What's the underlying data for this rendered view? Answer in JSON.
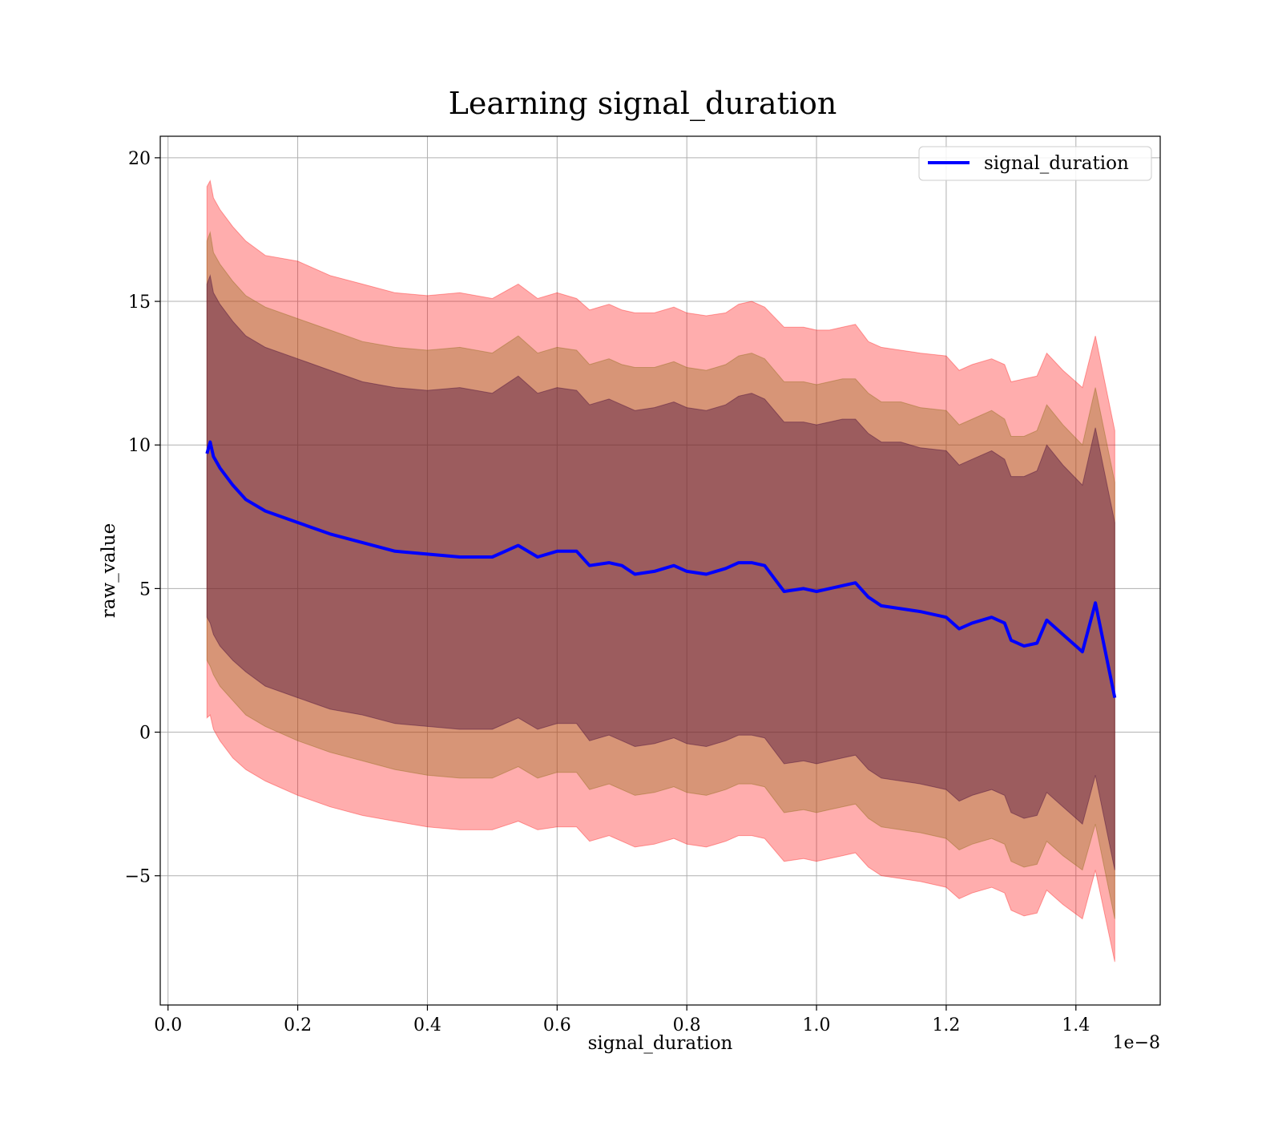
{
  "chart_data": {
    "type": "line",
    "title": "Learning signal_duration",
    "xlabel": "signal_duration",
    "ylabel": "raw_value",
    "x_offset_text": "1e−8",
    "xlim": [
      -0.012,
      1.53
    ],
    "ylim": [
      -9.5,
      20.75
    ],
    "x_ticks": [
      0.0,
      0.2,
      0.4,
      0.6,
      0.8,
      1.0,
      1.2,
      1.4
    ],
    "x_tick_labels": [
      "0.0",
      "0.2",
      "0.4",
      "0.6",
      "0.8",
      "1.0",
      "1.2",
      "1.4"
    ],
    "y_ticks": [
      -5,
      0,
      5,
      10,
      15,
      20
    ],
    "y_tick_labels": [
      "−5",
      "0",
      "5",
      "10",
      "15",
      "20"
    ],
    "grid": true,
    "legend": {
      "position": "top-right",
      "entries": [
        "signal_duration"
      ]
    },
    "colors": {
      "line": "#0000ff",
      "band_outer": "#ff0000",
      "band_middle": "#8b6914",
      "band_inner": "#4b0f3c",
      "grid": "#b0b0b0"
    },
    "series": [
      {
        "name": "signal_duration",
        "x": [
          0.06,
          0.065,
          0.07,
          0.08,
          0.1,
          0.12,
          0.15,
          0.2,
          0.25,
          0.3,
          0.35,
          0.4,
          0.45,
          0.5,
          0.54,
          0.57,
          0.6,
          0.63,
          0.65,
          0.68,
          0.7,
          0.72,
          0.75,
          0.78,
          0.8,
          0.83,
          0.86,
          0.88,
          0.9,
          0.92,
          0.95,
          0.98,
          1.0,
          1.02,
          1.04,
          1.06,
          1.08,
          1.1,
          1.13,
          1.16,
          1.2,
          1.22,
          1.24,
          1.27,
          1.29,
          1.3,
          1.32,
          1.34,
          1.355,
          1.38,
          1.41,
          1.43,
          1.46
        ],
        "y": [
          9.7,
          10.1,
          9.6,
          9.2,
          8.6,
          8.1,
          7.7,
          7.3,
          6.9,
          6.6,
          6.3,
          6.2,
          6.1,
          6.1,
          6.5,
          6.1,
          6.3,
          6.3,
          5.8,
          5.9,
          5.8,
          5.5,
          5.6,
          5.8,
          5.6,
          5.5,
          5.7,
          5.9,
          5.9,
          5.8,
          4.9,
          5.0,
          4.9,
          5.0,
          5.1,
          5.2,
          4.7,
          4.4,
          4.3,
          4.2,
          4.0,
          3.6,
          3.8,
          4.0,
          3.8,
          3.2,
          3.0,
          3.1,
          3.9,
          3.4,
          2.8,
          4.5,
          1.2
        ],
        "upper_outer": [
          19.0,
          19.2,
          18.6,
          18.2,
          17.6,
          17.1,
          16.6,
          16.4,
          15.9,
          15.6,
          15.3,
          15.2,
          15.3,
          15.1,
          15.6,
          15.1,
          15.3,
          15.1,
          14.7,
          14.9,
          14.7,
          14.6,
          14.6,
          14.8,
          14.6,
          14.5,
          14.6,
          14.9,
          15.0,
          14.8,
          14.1,
          14.1,
          14.0,
          14.0,
          14.1,
          14.2,
          13.6,
          13.4,
          13.3,
          13.2,
          13.1,
          12.6,
          12.8,
          13.0,
          12.8,
          12.2,
          12.3,
          12.4,
          13.2,
          12.6,
          12.0,
          13.8,
          10.5
        ],
        "upper_middle": [
          17.1,
          17.4,
          16.7,
          16.3,
          15.7,
          15.2,
          14.8,
          14.4,
          14.0,
          13.6,
          13.4,
          13.3,
          13.4,
          13.2,
          13.8,
          13.2,
          13.4,
          13.3,
          12.8,
          13.0,
          12.8,
          12.7,
          12.7,
          12.9,
          12.7,
          12.6,
          12.8,
          13.1,
          13.2,
          13.0,
          12.2,
          12.2,
          12.1,
          12.2,
          12.3,
          12.3,
          11.8,
          11.5,
          11.5,
          11.3,
          11.2,
          10.7,
          10.9,
          11.2,
          10.9,
          10.3,
          10.3,
          10.5,
          11.4,
          10.7,
          10.0,
          12.0,
          8.7
        ],
        "upper_inner": [
          15.6,
          15.9,
          15.3,
          14.9,
          14.3,
          13.8,
          13.4,
          13.0,
          12.6,
          12.2,
          12.0,
          11.9,
          12.0,
          11.8,
          12.4,
          11.8,
          12.0,
          11.9,
          11.4,
          11.6,
          11.4,
          11.2,
          11.3,
          11.5,
          11.3,
          11.2,
          11.4,
          11.7,
          11.8,
          11.6,
          10.8,
          10.8,
          10.7,
          10.8,
          10.9,
          10.9,
          10.4,
          10.1,
          10.1,
          9.9,
          9.8,
          9.3,
          9.5,
          9.8,
          9.5,
          8.9,
          8.9,
          9.1,
          10.0,
          9.3,
          8.6,
          10.6,
          7.3
        ],
        "lower_inner": [
          4.0,
          3.8,
          3.4,
          3.0,
          2.5,
          2.1,
          1.6,
          1.2,
          0.8,
          0.6,
          0.3,
          0.2,
          0.1,
          0.1,
          0.5,
          0.1,
          0.3,
          0.3,
          -0.3,
          -0.1,
          -0.3,
          -0.5,
          -0.4,
          -0.2,
          -0.4,
          -0.5,
          -0.3,
          -0.1,
          -0.1,
          -0.2,
          -1.1,
          -1.0,
          -1.1,
          -1.0,
          -0.9,
          -0.8,
          -1.3,
          -1.6,
          -1.7,
          -1.8,
          -2.0,
          -2.4,
          -2.2,
          -2.0,
          -2.2,
          -2.8,
          -3.0,
          -2.9,
          -2.1,
          -2.6,
          -3.2,
          -1.5,
          -4.8
        ],
        "lower_middle": [
          2.5,
          2.3,
          2.0,
          1.6,
          1.1,
          0.6,
          0.2,
          -0.3,
          -0.7,
          -1.0,
          -1.3,
          -1.5,
          -1.6,
          -1.6,
          -1.2,
          -1.6,
          -1.4,
          -1.4,
          -2.0,
          -1.8,
          -2.0,
          -2.2,
          -2.1,
          -1.9,
          -2.1,
          -2.2,
          -2.0,
          -1.8,
          -1.8,
          -1.9,
          -2.8,
          -2.7,
          -2.8,
          -2.7,
          -2.6,
          -2.5,
          -3.0,
          -3.3,
          -3.4,
          -3.5,
          -3.7,
          -4.1,
          -3.9,
          -3.7,
          -3.9,
          -4.5,
          -4.7,
          -4.6,
          -3.8,
          -4.3,
          -4.8,
          -3.2,
          -6.5
        ],
        "lower_outer": [
          0.5,
          0.6,
          0.1,
          -0.3,
          -0.9,
          -1.3,
          -1.7,
          -2.2,
          -2.6,
          -2.9,
          -3.1,
          -3.3,
          -3.4,
          -3.4,
          -3.1,
          -3.4,
          -3.3,
          -3.3,
          -3.8,
          -3.6,
          -3.8,
          -4.0,
          -3.9,
          -3.7,
          -3.9,
          -4.0,
          -3.8,
          -3.6,
          -3.6,
          -3.7,
          -4.5,
          -4.4,
          -4.5,
          -4.4,
          -4.3,
          -4.2,
          -4.7,
          -5.0,
          -5.1,
          -5.2,
          -5.4,
          -5.8,
          -5.6,
          -5.4,
          -5.6,
          -6.2,
          -6.4,
          -6.3,
          -5.5,
          -6.0,
          -6.5,
          -4.8,
          -8.0
        ]
      }
    ]
  }
}
